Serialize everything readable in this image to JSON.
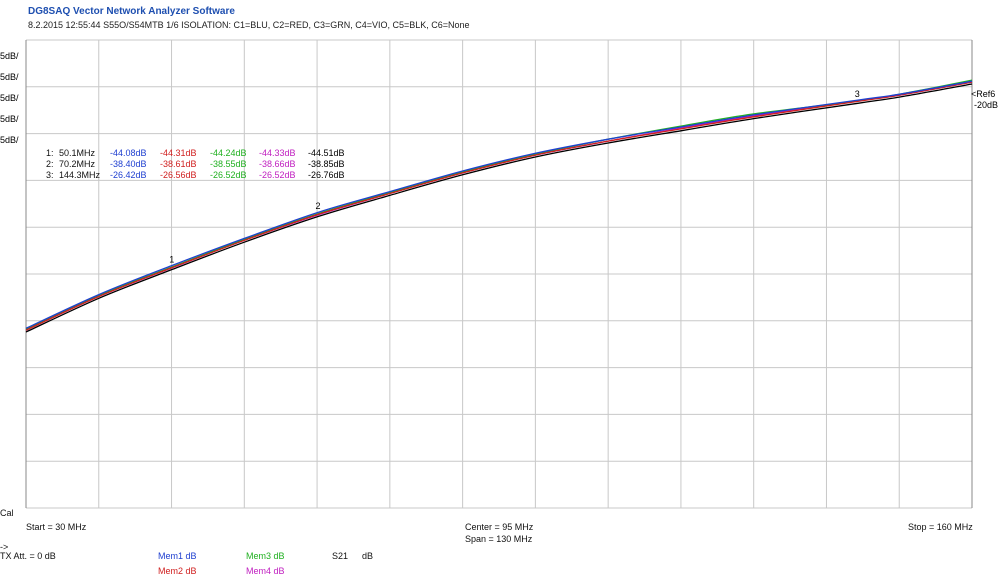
{
  "header": {
    "app_title": "DG8SAQ Vector Network Analyzer Software",
    "subtitle": "8.2.2015   12:55:44   S55O/S54MTB 1/6 ISOLATION: C1=BLU, C2=RED, C3=GRN, C4=VIO, C5=BLK, C6=None"
  },
  "scale_labels": [
    {
      "text": "5dB/",
      "color": "#1a3fd0"
    },
    {
      "text": "5dB/",
      "color": "#d02020"
    },
    {
      "text": "5dB/",
      "color": "#20b020"
    },
    {
      "text": "5dB/",
      "color": "#c020c0"
    },
    {
      "text": "5dB/",
      "color": "#000000"
    }
  ],
  "ref_label": "<Ref",
  "ref_marker": "6",
  "ref_value": "-20dB",
  "cal_label": "Cal",
  "axis": {
    "start": "Start = 30 MHz",
    "center": "Center = 95 MHz",
    "span": "Span = 130 MHz",
    "stop": "Stop = 160 MHz"
  },
  "markers": [
    {
      "label": "1:",
      "freq": "50.1MHz",
      "values": [
        "-44.08dB",
        "-44.31dB",
        "-44.24dB",
        "-44.33dB",
        "-44.51dB"
      ]
    },
    {
      "label": "2:",
      "freq": "70.2MHz",
      "values": [
        "-38.40dB",
        "-38.61dB",
        "-38.55dB",
        "-38.66dB",
        "-38.85dB"
      ]
    },
    {
      "label": "3:",
      "freq": "144.3MHz",
      "values": [
        "-26.42dB",
        "-26.56dB",
        "-26.52dB",
        "-26.52dB",
        "-26.76dB"
      ]
    }
  ],
  "marker_tags": [
    "1",
    "2",
    "3"
  ],
  "trace_colors": [
    "#2040d0",
    "#d02020",
    "#20b020",
    "#c020c0",
    "#000000"
  ],
  "bottom": {
    "arrow": "->",
    "tx_att": "TX Att.  = 0 dB",
    "mem1": "Mem1 dB",
    "mem2": "Mem2 dB",
    "mem3": "Mem3 dB",
    "mem4": "Mem4 dB",
    "s21": "S21",
    "s21_unit": "dB"
  },
  "chart_data": {
    "type": "line",
    "x_unit": "MHz",
    "xlim": [
      30,
      160
    ],
    "ylim": [
      -70,
      -20
    ],
    "y_ref": -20,
    "y_per_div": 5,
    "grid": true,
    "series": [
      {
        "color": "#2040d0",
        "x": [
          30,
          40,
          50.1,
          60,
          70.2,
          80,
          90,
          100,
          110,
          120,
          130,
          144.3,
          150,
          160
        ],
        "y": [
          -50.8,
          -47.2,
          -44.08,
          -41.2,
          -38.4,
          -36.2,
          -34.0,
          -32.1,
          -30.6,
          -29.3,
          -28.0,
          -26.42,
          -25.8,
          -24.4
        ]
      },
      {
        "color": "#d02020",
        "x": [
          30,
          40,
          50.1,
          60,
          70.2,
          80,
          90,
          100,
          110,
          120,
          130,
          144.3,
          150,
          160
        ],
        "y": [
          -51.0,
          -47.4,
          -44.31,
          -41.4,
          -38.61,
          -36.4,
          -34.2,
          -32.3,
          -30.8,
          -29.5,
          -28.2,
          -26.56,
          -25.9,
          -24.5
        ]
      },
      {
        "color": "#20b020",
        "x": [
          30,
          40,
          50.1,
          60,
          70.2,
          80,
          90,
          100,
          110,
          120,
          130,
          144.3,
          150,
          160
        ],
        "y": [
          -50.9,
          -47.3,
          -44.24,
          -41.3,
          -38.55,
          -36.3,
          -34.1,
          -32.2,
          -30.6,
          -29.2,
          -27.9,
          -26.52,
          -25.8,
          -24.3
        ]
      },
      {
        "color": "#c020c0",
        "x": [
          30,
          40,
          50.1,
          60,
          70.2,
          80,
          90,
          100,
          110,
          120,
          130,
          144.3,
          150,
          160
        ],
        "y": [
          -51.0,
          -47.4,
          -44.33,
          -41.4,
          -38.66,
          -36.4,
          -34.2,
          -32.3,
          -30.8,
          -29.4,
          -28.1,
          -26.52,
          -25.9,
          -24.5
        ]
      },
      {
        "color": "#000000",
        "x": [
          30,
          40,
          50.1,
          60,
          70.2,
          80,
          90,
          100,
          110,
          120,
          130,
          144.3,
          150,
          160
        ],
        "y": [
          -51.2,
          -47.6,
          -44.51,
          -41.6,
          -38.85,
          -36.6,
          -34.4,
          -32.5,
          -31.0,
          -29.7,
          -28.4,
          -26.76,
          -26.1,
          -24.7
        ]
      }
    ]
  }
}
